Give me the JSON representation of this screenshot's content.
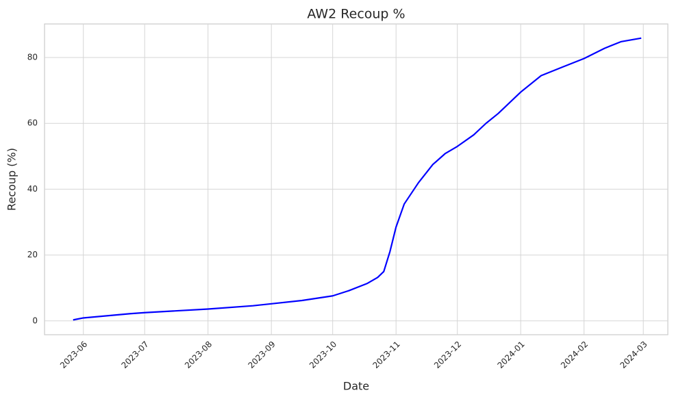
{
  "chart_data": {
    "type": "line",
    "title": "AW2 Recoup %",
    "xlabel": "Date",
    "ylabel": "Recoup (%)",
    "x": [
      "2023-05-27",
      "2023-06-01",
      "2023-06-24",
      "2023-07-01",
      "2023-08-01",
      "2023-08-23",
      "2023-09-01",
      "2023-09-16",
      "2023-10-01",
      "2023-10-09",
      "2023-10-18",
      "2023-10-23",
      "2023-10-26",
      "2023-10-29",
      "2023-11-01",
      "2023-11-05",
      "2023-11-12",
      "2023-11-19",
      "2023-11-25",
      "2023-12-01",
      "2023-12-09",
      "2023-12-15",
      "2023-12-21",
      "2024-01-01",
      "2024-01-11",
      "2024-01-21",
      "2024-02-01",
      "2024-02-11",
      "2024-02-19",
      "2024-02-29"
    ],
    "series": [
      {
        "name": "AW2 Recoup %",
        "color": "#0000ff",
        "values": [
          0.3,
          0.9,
          2.2,
          2.5,
          3.6,
          4.6,
          5.2,
          6.2,
          7.6,
          9.2,
          11.4,
          13.2,
          15,
          21,
          28.5,
          35.5,
          42,
          47.5,
          50.8,
          53,
          56.5,
          60,
          63,
          69.5,
          74.5,
          77,
          79.7,
          82.8,
          84.8,
          85.9
        ]
      }
    ],
    "xlim": [
      "2023-05-13",
      "2024-03-13"
    ],
    "xticks": [
      "2023-06",
      "2023-07",
      "2023-08",
      "2023-09",
      "2023-10",
      "2023-11",
      "2023-12",
      "2024-01",
      "2024-02",
      "2024-03"
    ],
    "ylim": [
      -4.2,
      90.2
    ],
    "yticks": [
      0,
      20,
      40,
      60,
      80
    ],
    "grid": true
  }
}
